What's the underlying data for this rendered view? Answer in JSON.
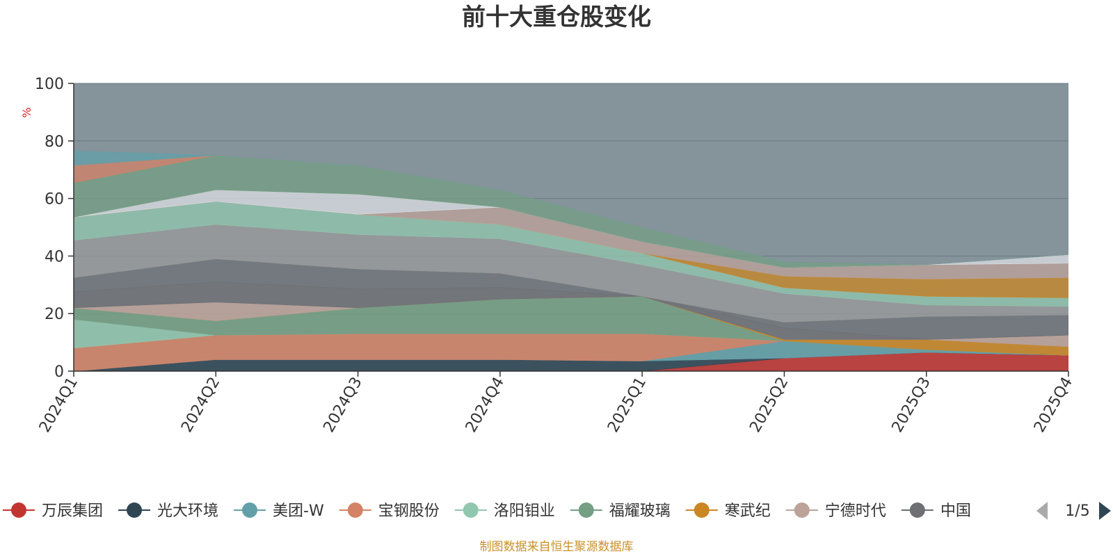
{
  "chart_data": {
    "type": "area",
    "stacked": true,
    "title": "前十大重仓股变化",
    "ylabel": "%",
    "xlabel": "",
    "ylim": [
      0,
      100
    ],
    "yticks": [
      0,
      20,
      40,
      60,
      80,
      100
    ],
    "grid": true,
    "categories": [
      "2024Q1",
      "2024Q2",
      "2024Q3",
      "2024Q4",
      "2025Q1",
      "2025Q2",
      "2025Q3",
      "2025Q4"
    ],
    "series": [
      {
        "name": "万辰集团",
        "color": "#c23531",
        "values": [
          0,
          0,
          0,
          0,
          0,
          4.5,
          6.5,
          5.5
        ]
      },
      {
        "name": "光大环境",
        "color": "#2f4554",
        "values": [
          0,
          4,
          4,
          4,
          3.5,
          0,
          0,
          0
        ]
      },
      {
        "name": "美团-W",
        "color": "#61a0a8",
        "values": [
          0,
          0,
          0,
          0,
          0,
          6,
          1,
          0
        ]
      },
      {
        "name": "宝钢股份",
        "color": "#d48265",
        "values": [
          8,
          8.5,
          9,
          9,
          9.5,
          0,
          0,
          0
        ]
      },
      {
        "name": "洛阳钼业",
        "color": "#91c7ae",
        "values": [
          10,
          0,
          0,
          0,
          0,
          0,
          0,
          0
        ]
      },
      {
        "name": "福耀玻璃",
        "color": "#749f83",
        "values": [
          4,
          5,
          9,
          12,
          13,
          0,
          0,
          0
        ]
      },
      {
        "name": "寒武纪",
        "color": "#ca8622",
        "values": [
          0,
          0,
          0,
          0,
          0,
          0.5,
          3.5,
          3
        ]
      },
      {
        "name": "宁德时代",
        "color": "#bda29a",
        "values": [
          0,
          6.5,
          0,
          0,
          0,
          0,
          0,
          4
        ]
      },
      {
        "name": "中国",
        "color": "#6e7074",
        "values": [
          5.5,
          7,
          6.5,
          4,
          0,
          4,
          0,
          0
        ]
      }
    ],
    "legend": {
      "placement": "bottom",
      "page": "1/5"
    }
  },
  "source_note": "制图数据来自恒生聚源数据库"
}
